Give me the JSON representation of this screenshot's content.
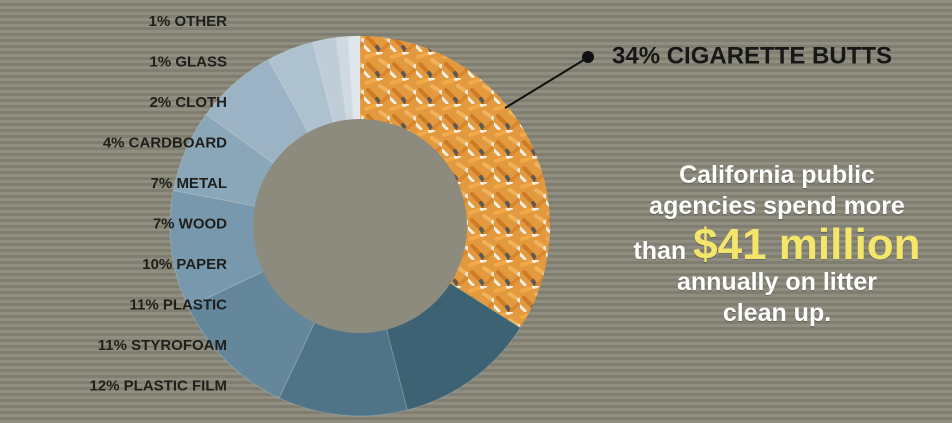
{
  "chart_data": {
    "type": "pie",
    "title": "",
    "slices": [
      {
        "label": "34% CIGARETTE BUTTS",
        "value": 34,
        "color": "#e8922e"
      },
      {
        "label": "12% PLASTIC FILM",
        "value": 12,
        "color": "#3c6273"
      },
      {
        "label": "11% STYROFOAM",
        "value": 11,
        "color": "#4f7488"
      },
      {
        "label": "11% PLASTIC",
        "value": 11,
        "color": "#64879b"
      },
      {
        "label": "10% PAPER",
        "value": 10,
        "color": "#7898ad"
      },
      {
        "label": "7% WOOD",
        "value": 7,
        "color": "#8aa6b9"
      },
      {
        "label": "7% METAL",
        "value": 7,
        "color": "#9bb3c4"
      },
      {
        "label": "4% CARDBOARD",
        "value": 4,
        "color": "#aec1cf"
      },
      {
        "label": "2% CLOTH",
        "value": 2,
        "color": "#bfcdd9"
      },
      {
        "label": "1% GLASS",
        "value": 1,
        "color": "#ced9e2"
      },
      {
        "label": "1% OTHER",
        "value": 1,
        "color": "#dfe6ec"
      }
    ],
    "center_color": "#8d8b7d"
  },
  "message": {
    "line1": "California public",
    "line2": "agencies spend more",
    "line3_prefix": "than ",
    "highlight": "$41 million",
    "line4": "annually on litter",
    "line5": "clean up."
  }
}
